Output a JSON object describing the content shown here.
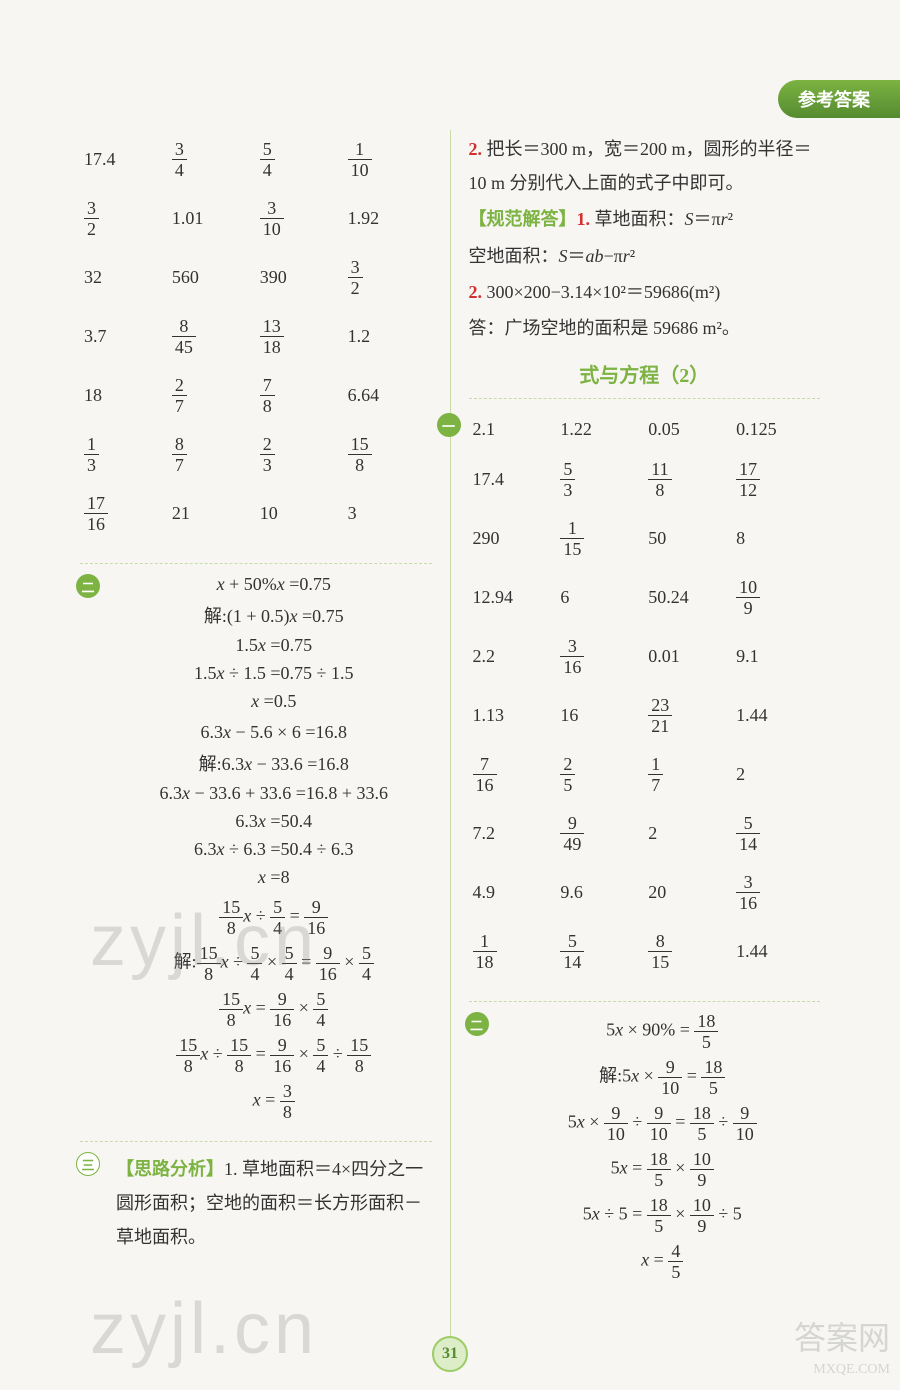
{
  "header_tab": "参考答案",
  "page_number": "31",
  "left": {
    "table1": [
      [
        "17.4",
        {
          "f": [
            3,
            4
          ]
        },
        {
          "f": [
            5,
            4
          ]
        },
        {
          "f": [
            1,
            10
          ]
        }
      ],
      [
        {
          "f": [
            3,
            2
          ]
        },
        "1.01",
        {
          "f": [
            3,
            10
          ]
        },
        "1.92"
      ],
      [
        "32",
        "560",
        "390",
        {
          "f": [
            3,
            2
          ]
        }
      ],
      [
        "3.7",
        {
          "f": [
            8,
            45
          ]
        },
        {
          "f": [
            13,
            18
          ]
        },
        "1.2"
      ],
      [
        "18",
        {
          "f": [
            2,
            7
          ]
        },
        {
          "f": [
            7,
            8
          ]
        },
        "6.64"
      ],
      [
        {
          "f": [
            1,
            3
          ]
        },
        {
          "f": [
            8,
            7
          ]
        },
        {
          "f": [
            2,
            3
          ]
        },
        {
          "f": [
            15,
            8
          ]
        }
      ],
      [
        {
          "f": [
            17,
            16
          ]
        },
        "21",
        "10",
        "3"
      ]
    ],
    "bullet2": "二",
    "eq1": [
      "<span class='it'>x</span> + 50%<span class='it'>x</span> =0.75",
      "解:(1 + 0.5)<span class='it'>x</span> =0.75",
      "1.5<span class='it'>x</span> =0.75",
      "1.5<span class='it'>x</span> ÷ 1.5 =0.75 ÷ 1.5",
      "<span class='it'>x</span> =0.5"
    ],
    "eq2": [
      "6.3<span class='it'>x</span> − 5.6 × 6 =16.8",
      "解:6.3<span class='it'>x</span> − 33.6 =16.8",
      "6.3<span class='it'>x</span> − 33.6 + 33.6 =16.8 + 33.6",
      "6.3<span class='it'>x</span> =50.4",
      "6.3<span class='it'>x</span> ÷ 6.3 =50.4 ÷ 6.3",
      "<span class='it'>x</span> =8"
    ],
    "eq3": [
      "FRAC15/8<span class='it'>x</span> ÷ FRAC5/4 = FRAC9/16",
      "解:FRAC15/8<span class='it'>x</span> ÷ FRAC5/4 × FRAC5/4 = FRAC9/16 × FRAC5/4",
      "FRAC15/8<span class='it'>x</span> = FRAC9/16 × FRAC5/4",
      "FRAC15/8<span class='it'>x</span> ÷ FRAC15/8 = FRAC9/16 × FRAC5/4 ÷ FRAC15/8",
      "<span class='it'>x</span> = FRAC3/8"
    ],
    "bullet3": "三",
    "analysis_label": "【思路分析】",
    "analysis_text": "1. 草地面积＝4×四分之一圆形面积；空地的面积＝长方形面积－草地面积。"
  },
  "right": {
    "top_lines": [
      "<span class='red-num'>2.</span> 把长＝300 m，宽＝200 m，圆形的半径＝10 m 分别代入上面的式子中即可。",
      "<span class='green-label'>【规范解答】</span><span class='red-num'>1.</span> 草地面积：<span class='it'>S</span>＝π<span class='it'>r</span>²",
      "空地面积：<span class='it'>S</span>＝<span class='it'>ab</span>−π<span class='it'>r</span>²",
      "<span class='red-num'>2.</span> 300×200−3.14×10²＝59686(m²)",
      "答：广场空地的面积是 59686 m²。"
    ],
    "section_title": "式与方程（2）",
    "bullet1": "一",
    "table2": [
      [
        "2.1",
        "1.22",
        "0.05",
        "0.125"
      ],
      [
        "17.4",
        {
          "f": [
            5,
            3
          ]
        },
        {
          "f": [
            11,
            8
          ]
        },
        {
          "f": [
            17,
            12
          ]
        }
      ],
      [
        "290",
        {
          "f": [
            1,
            15
          ]
        },
        "50",
        "8"
      ],
      [
        "12.94",
        "6",
        "50.24",
        {
          "f": [
            10,
            9
          ]
        }
      ],
      [
        "2.2",
        {
          "f": [
            3,
            16
          ]
        },
        "0.01",
        "9.1"
      ],
      [
        "1.13",
        "16",
        {
          "f": [
            23,
            21
          ]
        },
        "1.44"
      ],
      [
        {
          "f": [
            7,
            16
          ]
        },
        {
          "f": [
            2,
            5
          ]
        },
        {
          "f": [
            1,
            7
          ]
        },
        "2"
      ],
      [
        "7.2",
        {
          "f": [
            9,
            49
          ]
        },
        "2",
        {
          "f": [
            5,
            14
          ]
        }
      ],
      [
        "4.9",
        "9.6",
        "20",
        {
          "f": [
            3,
            16
          ]
        }
      ],
      [
        {
          "f": [
            1,
            18
          ]
        },
        {
          "f": [
            5,
            14
          ]
        },
        {
          "f": [
            8,
            15
          ]
        },
        "1.44"
      ]
    ],
    "bullet2": "二",
    "eq1": [
      "5<span class='it'>x</span> × 90% = FRAC18/5",
      "解:5<span class='it'>x</span> × FRAC9/10 = FRAC18/5",
      "5<span class='it'>x</span> × FRAC9/10 ÷ FRAC9/10 = FRAC18/5 ÷ FRAC9/10",
      "5<span class='it'>x</span> = FRAC18/5 × FRAC10/9",
      "5<span class='it'>x</span> ÷ 5 = FRAC18/5 × FRAC10/9 ÷ 5",
      "<span class='it'>x</span> = FRAC4/5"
    ]
  },
  "watermarks": {
    "w1": "zyjl.cn",
    "w2": "zyjl.cn",
    "corner1": "答案网",
    "corner2": "MXQE.COM"
  }
}
